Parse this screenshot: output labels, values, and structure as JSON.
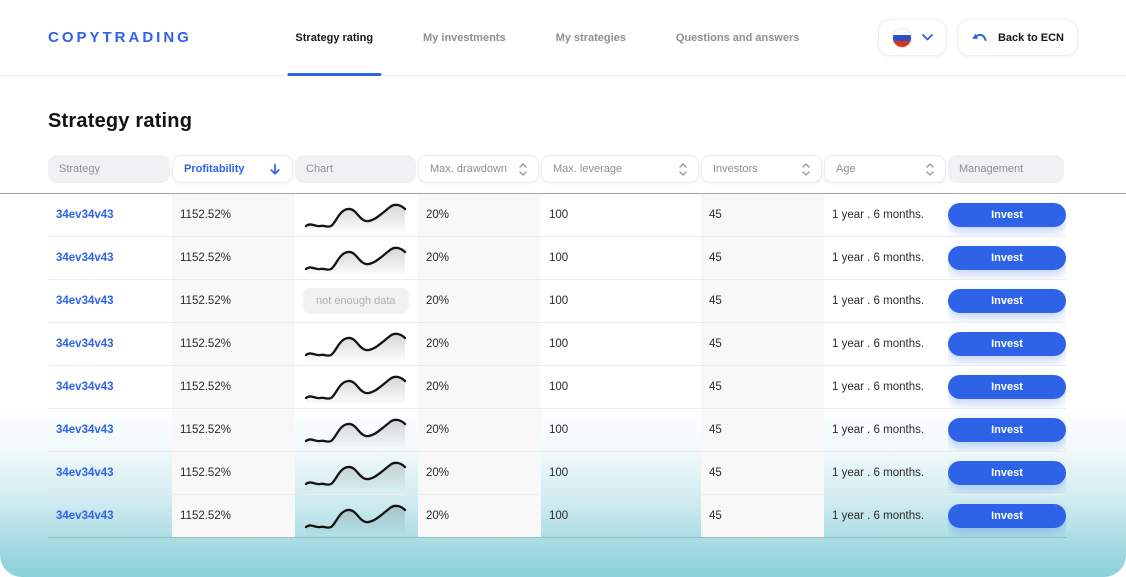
{
  "header": {
    "logo": "COPYTRADING",
    "tabs": [
      {
        "label": "Strategy rating",
        "active": true
      },
      {
        "label": "My investments",
        "active": false
      },
      {
        "label": "My strategies",
        "active": false
      },
      {
        "label": "Questions and answers",
        "active": false
      }
    ],
    "language": {
      "flag": "russian-flag",
      "chevron_icon": "chevron-down"
    },
    "back_button_label": "Back to ECN"
  },
  "page": {
    "title": "Strategy rating"
  },
  "filters": [
    {
      "label": "Strategy",
      "type": "plain"
    },
    {
      "label": "Profitability",
      "type": "active",
      "sort": "desc"
    },
    {
      "label": "Chart",
      "type": "plain"
    },
    {
      "label": "Max. drawdown",
      "type": "sortable"
    },
    {
      "label": "Max. leverage",
      "type": "sortable"
    },
    {
      "label": "Investors",
      "type": "sortable"
    },
    {
      "label": "Age",
      "type": "sortable"
    },
    {
      "label": "Management",
      "type": "plain"
    }
  ],
  "table": {
    "not_enough_data_label": "not enough data",
    "invest_label": "Invest",
    "rows": [
      {
        "strategy": "34ev34v43",
        "profitability": "1152.52%",
        "chart": "sparkline",
        "max_drawdown": "20%",
        "max_leverage": "100",
        "investors": "45",
        "age": "1 year . 6 months."
      },
      {
        "strategy": "34ev34v43",
        "profitability": "1152.52%",
        "chart": "sparkline",
        "max_drawdown": "20%",
        "max_leverage": "100",
        "investors": "45",
        "age": "1 year . 6 months."
      },
      {
        "strategy": "34ev34v43",
        "profitability": "1152.52%",
        "chart": "no-data",
        "max_drawdown": "20%",
        "max_leverage": "100",
        "investors": "45",
        "age": "1 year . 6 months."
      },
      {
        "strategy": "34ev34v43",
        "profitability": "1152.52%",
        "chart": "sparkline",
        "max_drawdown": "20%",
        "max_leverage": "100",
        "investors": "45",
        "age": "1 year . 6 months."
      },
      {
        "strategy": "34ev34v43",
        "profitability": "1152.52%",
        "chart": "sparkline",
        "max_drawdown": "20%",
        "max_leverage": "100",
        "investors": "45",
        "age": "1 year . 6 months."
      },
      {
        "strategy": "34ev34v43",
        "profitability": "1152.52%",
        "chart": "sparkline",
        "max_drawdown": "20%",
        "max_leverage": "100",
        "investors": "45",
        "age": "1 year . 6 months."
      },
      {
        "strategy": "34ev34v43",
        "profitability": "1152.52%",
        "chart": "sparkline",
        "max_drawdown": "20%",
        "max_leverage": "100",
        "investors": "45",
        "age": "1 year . 6 months."
      },
      {
        "strategy": "34ev34v43",
        "profitability": "1152.52%",
        "chart": "sparkline",
        "max_drawdown": "20%",
        "max_leverage": "100",
        "investors": "45",
        "age": "1 year . 6 months."
      }
    ]
  },
  "colors": {
    "accent": "#2f62e9",
    "invest_button": "#2e63e8",
    "gradient_bottom": "#8ad0d9"
  }
}
